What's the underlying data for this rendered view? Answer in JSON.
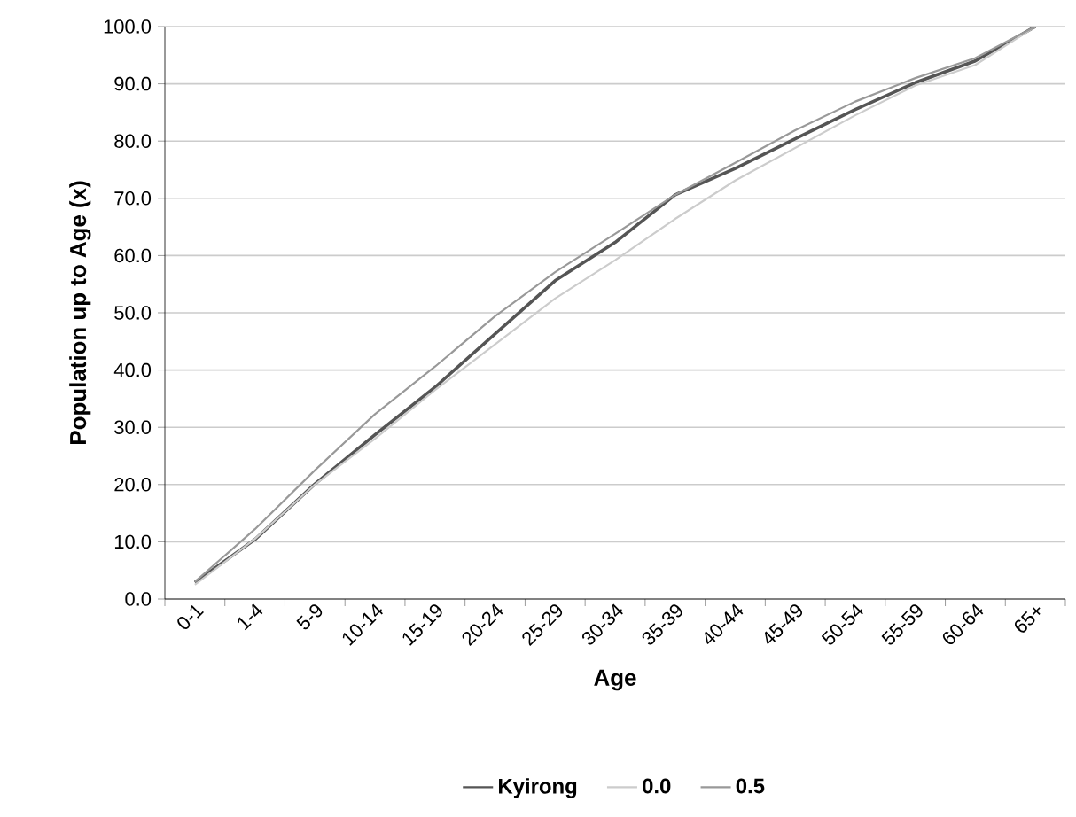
{
  "chart_data": {
    "type": "line",
    "xlabel": "Age",
    "ylabel": "Population up to Age (x)",
    "categories": [
      "0-1",
      "1-4",
      "5-9",
      "10-14",
      "15-19",
      "20-24",
      "25-29",
      "30-34",
      "35-39",
      "40-44",
      "45-49",
      "50-54",
      "55-59",
      "60-64",
      "65+"
    ],
    "series": [
      {
        "name": "Kyirong",
        "color": "#555555",
        "values": [
          2.9,
          10.4,
          20.1,
          28.7,
          37.0,
          46.3,
          55.6,
          62.3,
          70.6,
          75.2,
          80.4,
          85.5,
          90.2,
          94.0,
          100.0
        ]
      },
      {
        "name": "0.0",
        "color": "#cccccc",
        "values": [
          2.5,
          10.5,
          20.0,
          28.0,
          36.5,
          44.5,
          52.5,
          59.2,
          66.4,
          73.1,
          78.8,
          84.5,
          89.7,
          93.3,
          100.0
        ]
      },
      {
        "name": "0.5",
        "color": "#999999",
        "values": [
          3.0,
          12.2,
          22.5,
          32.3,
          40.6,
          49.4,
          57.1,
          63.8,
          70.6,
          76.2,
          81.9,
          86.9,
          91.0,
          94.5,
          100.0
        ]
      }
    ],
    "ylim": [
      0,
      100
    ],
    "yticks": [
      {
        "value": 0,
        "label": "0.0"
      },
      {
        "value": 10,
        "label": "10.0"
      },
      {
        "value": 20,
        "label": "20.0"
      },
      {
        "value": 30,
        "label": "30.0"
      },
      {
        "value": 40,
        "label": "40.0"
      },
      {
        "value": 50,
        "label": "50.0"
      },
      {
        "value": 60,
        "label": "60.0"
      },
      {
        "value": 70,
        "label": "70.0"
      },
      {
        "value": 80,
        "label": "80.0"
      },
      {
        "value": 90,
        "label": "90.0"
      },
      {
        "value": 100,
        "label": "100.0"
      }
    ],
    "grid": "y",
    "legend": "bottom",
    "marker": "none",
    "line_style": "solid"
  }
}
